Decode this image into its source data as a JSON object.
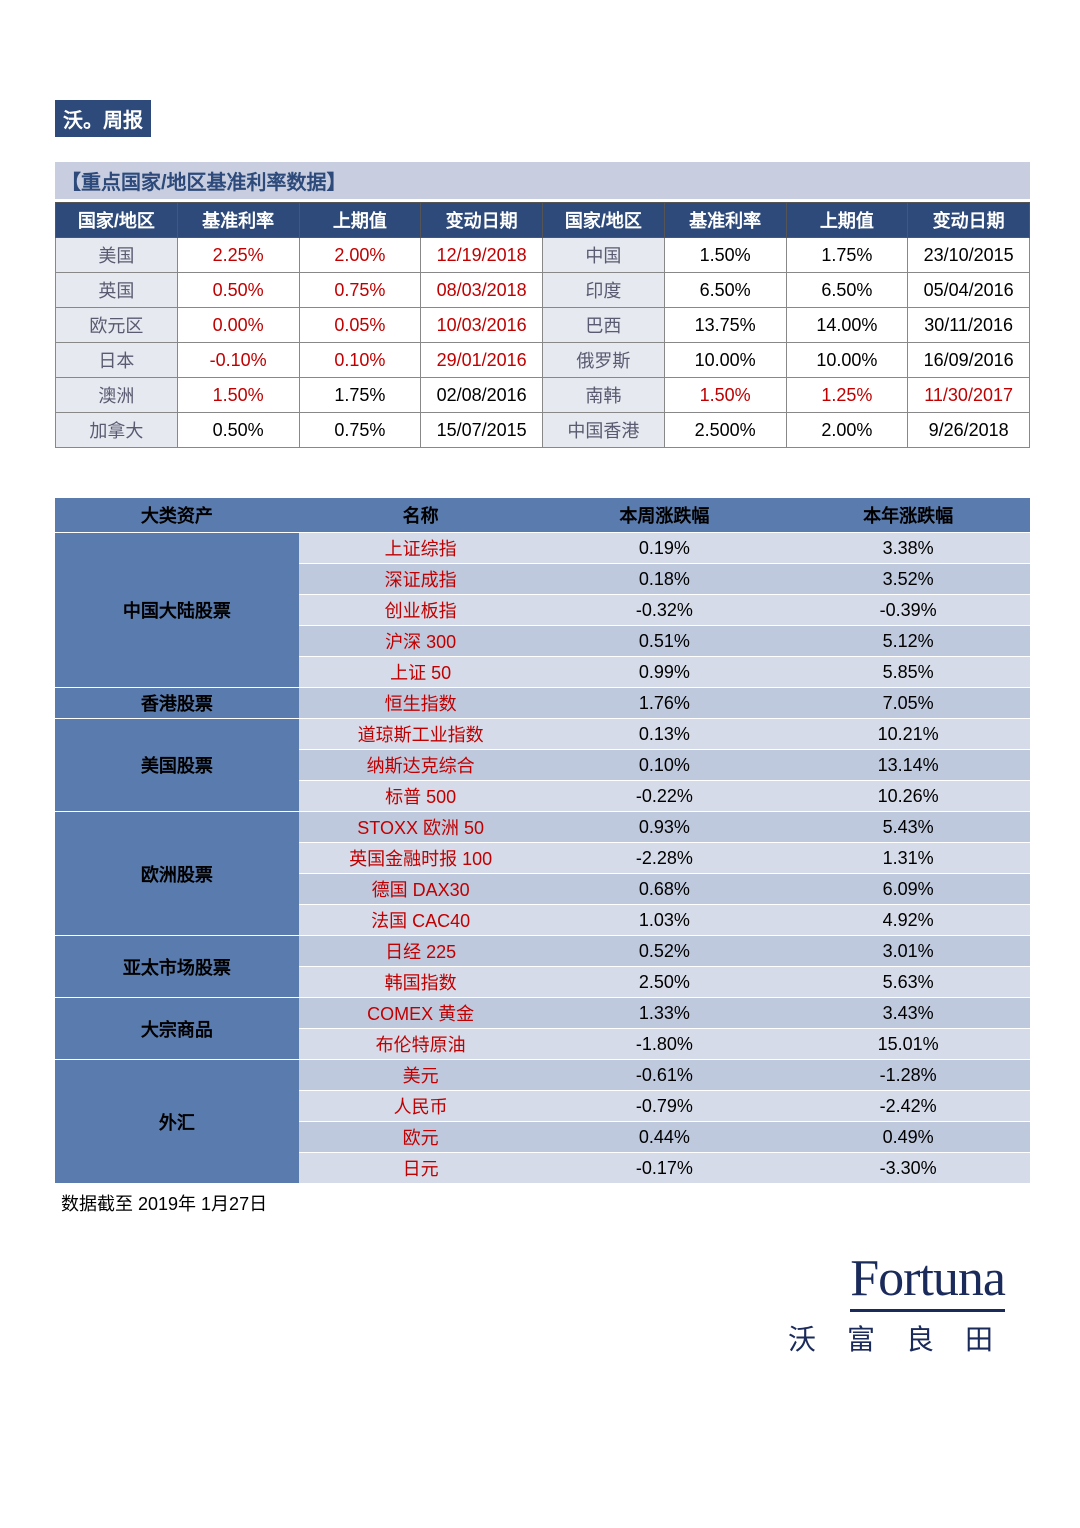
{
  "title": "沃。周报",
  "section1_header": "【重点国家/地区基准利率数据】",
  "rates_headers": [
    "国家/地区",
    "基准利率",
    "上期值",
    "变动日期",
    "国家/地区",
    "基准利率",
    "上期值",
    "变动日期"
  ],
  "rates_rows": [
    {
      "l": [
        "美国",
        "2.25%",
        "2.00%",
        "12/19/2018"
      ],
      "r": [
        "中国",
        "1.50%",
        "1.75%",
        "23/10/2015"
      ],
      "lred": [
        false,
        true,
        true,
        true
      ],
      "rred": [
        false,
        false,
        false,
        false
      ]
    },
    {
      "l": [
        "英国",
        "0.50%",
        "0.75%",
        "08/03/2018"
      ],
      "r": [
        "印度",
        "6.50%",
        "6.50%",
        "05/04/2016"
      ],
      "lred": [
        false,
        true,
        true,
        true
      ],
      "rred": [
        false,
        false,
        false,
        false
      ]
    },
    {
      "l": [
        "欧元区",
        "0.00%",
        "0.05%",
        "10/03/2016"
      ],
      "r": [
        "巴西",
        "13.75%",
        "14.00%",
        "30/11/2016"
      ],
      "lred": [
        false,
        true,
        true,
        true
      ],
      "rred": [
        false,
        false,
        false,
        false
      ]
    },
    {
      "l": [
        "日本",
        "-0.10%",
        "0.10%",
        "29/01/2016"
      ],
      "r": [
        "俄罗斯",
        "10.00%",
        "10.00%",
        "16/09/2016"
      ],
      "lred": [
        false,
        true,
        true,
        true
      ],
      "rred": [
        false,
        false,
        false,
        false
      ]
    },
    {
      "l": [
        "澳洲",
        "1.50%",
        "1.75%",
        "02/08/2016"
      ],
      "r": [
        "南韩",
        "1.50%",
        "1.25%",
        "11/30/2017"
      ],
      "lred": [
        false,
        true,
        false,
        false
      ],
      "rred": [
        false,
        true,
        true,
        true
      ]
    },
    {
      "l": [
        "加拿大",
        "0.50%",
        "0.75%",
        "15/07/2015"
      ],
      "r": [
        "中国香港",
        "2.500%",
        "2.00%",
        "9/26/2018"
      ],
      "lred": [
        false,
        false,
        false,
        false
      ],
      "rred": [
        false,
        false,
        false,
        false
      ]
    }
  ],
  "asset_headers": [
    "大类资产",
    "名称",
    "本周涨跌幅",
    "本年涨跌幅"
  ],
  "asset_groups": [
    {
      "cat": "中国大陆股票",
      "span": 5,
      "rows": [
        {
          "name": "上证综指",
          "w": "0.19%",
          "y": "3.38%",
          "shade": "light"
        },
        {
          "name": "深证成指",
          "w": "0.18%",
          "y": "3.52%",
          "shade": "dark"
        },
        {
          "name": "创业板指",
          "w": "-0.32%",
          "y": "-0.39%",
          "shade": "light"
        },
        {
          "name": "沪深 300",
          "w": "0.51%",
          "y": "5.12%",
          "shade": "dark"
        },
        {
          "name": "上证 50",
          "w": "0.99%",
          "y": "5.85%",
          "shade": "light"
        }
      ]
    },
    {
      "cat": "香港股票",
      "span": 1,
      "rows": [
        {
          "name": "恒生指数",
          "w": "1.76%",
          "y": "7.05%",
          "shade": "dark"
        }
      ]
    },
    {
      "cat": "美国股票",
      "span": 3,
      "rows": [
        {
          "name": "道琼斯工业指数",
          "w": "0.13%",
          "y": "10.21%",
          "shade": "light"
        },
        {
          "name": "纳斯达克综合",
          "w": "0.10%",
          "y": "13.14%",
          "shade": "dark"
        },
        {
          "name": "标普 500",
          "w": "-0.22%",
          "y": "10.26%",
          "shade": "light"
        }
      ]
    },
    {
      "cat": "欧洲股票",
      "span": 4,
      "rows": [
        {
          "name": "STOXX 欧洲 50",
          "w": "0.93%",
          "y": "5.43%",
          "shade": "dark"
        },
        {
          "name": "英国金融时报 100",
          "w": "-2.28%",
          "y": "1.31%",
          "shade": "light"
        },
        {
          "name": "德国 DAX30",
          "w": "0.68%",
          "y": "6.09%",
          "shade": "dark"
        },
        {
          "name": "法国 CAC40",
          "w": "1.03%",
          "y": "4.92%",
          "shade": "light"
        }
      ]
    },
    {
      "cat": "亚太市场股票",
      "span": 2,
      "rows": [
        {
          "name": "日经 225",
          "w": "0.52%",
          "y": "3.01%",
          "shade": "dark"
        },
        {
          "name": "韩国指数",
          "w": "2.50%",
          "y": "5.63%",
          "shade": "light"
        }
      ]
    },
    {
      "cat": "大宗商品",
      "span": 2,
      "rows": [
        {
          "name": "COMEX 黄金",
          "w": "1.33%",
          "y": "3.43%",
          "shade": "dark"
        },
        {
          "name": "布伦特原油",
          "w": "-1.80%",
          "y": "15.01%",
          "shade": "light"
        }
      ]
    },
    {
      "cat": "外汇",
      "span": 4,
      "rows": [
        {
          "name": "美元",
          "w": "-0.61%",
          "y": "-1.28%",
          "shade": "dark"
        },
        {
          "name": "人民币",
          "w": "-0.79%",
          "y": "-2.42%",
          "shade": "light"
        },
        {
          "name": "欧元",
          "w": "0.44%",
          "y": "0.49%",
          "shade": "dark"
        },
        {
          "name": "日元",
          "w": "-0.17%",
          "y": "-3.30%",
          "shade": "light"
        }
      ]
    }
  ],
  "footnote": "数据截至 2019年 1月27日",
  "logo_main": "Fortuna",
  "logo_sub": "沃 富 良 田"
}
